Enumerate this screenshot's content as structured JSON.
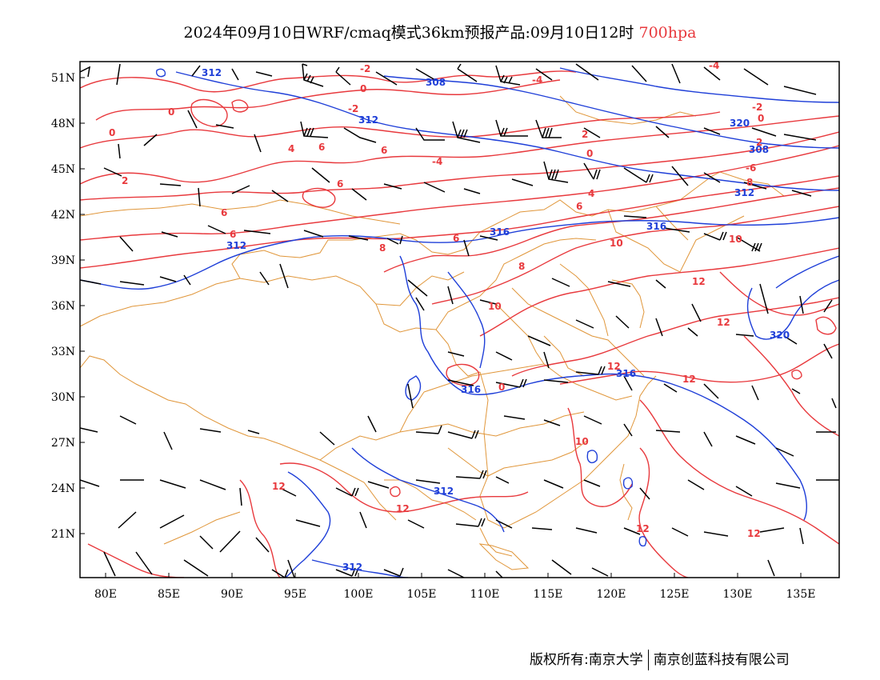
{
  "title": {
    "main": "2024年09月10日WRF/cmaq模式36km预报产品:09月10日12时",
    "level": "700hpa"
  },
  "colors": {
    "temperature": "#e8393d",
    "height": "#1f3fd8",
    "boundary": "#e0963a",
    "barb": "#000000"
  },
  "axes": {
    "x_ticks": [
      "80E",
      "85E",
      "90E",
      "95E",
      "100E",
      "105E",
      "110E",
      "115E",
      "120E",
      "125E",
      "130E",
      "135E"
    ],
    "y_ticks": [
      "51N",
      "48N",
      "45N",
      "42N",
      "39N",
      "36N",
      "33N",
      "30N",
      "27N",
      "24N",
      "21N"
    ]
  },
  "contour_labels": {
    "temperature": [
      "-2",
      "-4",
      "0",
      "4",
      "6",
      "-6",
      "2",
      "8",
      "10",
      "12"
    ],
    "height": [
      "312",
      "308",
      "316",
      "320"
    ]
  },
  "footer": {
    "left": "版权所有:南京大学",
    "right": "南京创蓝科技有限公司"
  }
}
